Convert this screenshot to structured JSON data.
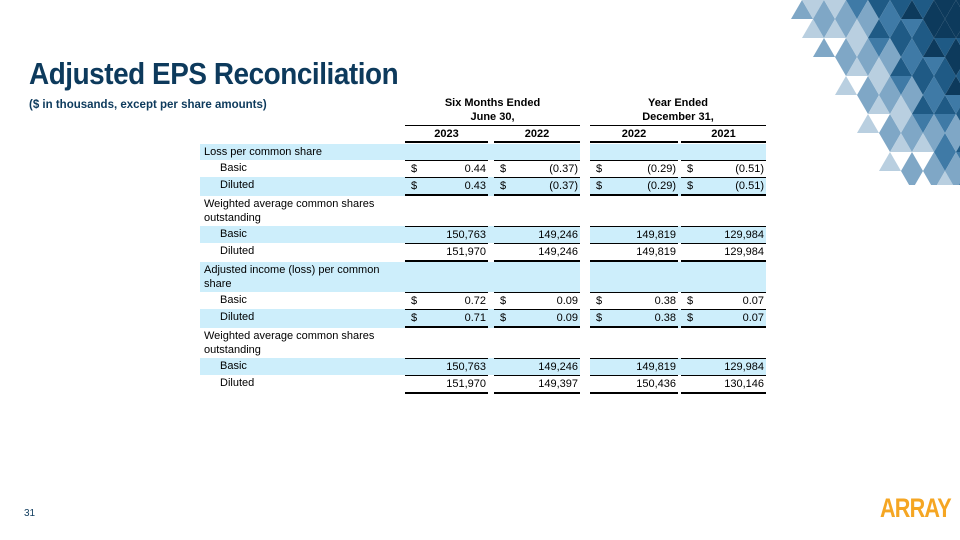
{
  "title": "Adjusted EPS Reconciliation",
  "subtitle": "($ in thousands, except per share amounts)",
  "table": {
    "group_headers": [
      {
        "line1": "Six Months Ended",
        "line2": "June 30,"
      },
      {
        "line1": "Year Ended",
        "line2": "December 31,"
      }
    ],
    "columns": [
      "2023",
      "2022",
      "2022",
      "2021"
    ],
    "rows": [
      {
        "label": "Loss per common share"
      },
      {
        "label": "Basic",
        "cells": [
          {
            "symbol": "$",
            "amount": "0.44"
          },
          {
            "symbol": "$",
            "amount": "(0.37)"
          },
          {
            "symbol": "$",
            "amount": "(0.29)"
          },
          {
            "symbol": "$",
            "amount": "(0.51)"
          }
        ]
      },
      {
        "label": "Diluted",
        "cells": [
          {
            "symbol": "$",
            "amount": "0.43"
          },
          {
            "symbol": "$",
            "amount": "(0.37)"
          },
          {
            "symbol": "$",
            "amount": "(0.29)"
          },
          {
            "symbol": "$",
            "amount": "(0.51)"
          }
        ]
      },
      {
        "label": "Weighted average common shares outstanding"
      },
      {
        "label": "Basic",
        "cells": [
          "150,763",
          "149,246",
          "149,819",
          "129,984"
        ]
      },
      {
        "label": "Diluted",
        "cells": [
          "151,970",
          "149,246",
          "149,819",
          "129,984"
        ]
      },
      {
        "label": "Adjusted income (loss) per common share"
      },
      {
        "label": "Basic",
        "cells": [
          {
            "symbol": "$",
            "amount": "0.72"
          },
          {
            "symbol": "$",
            "amount": "0.09"
          },
          {
            "symbol": "$",
            "amount": "0.38"
          },
          {
            "symbol": "$",
            "amount": "0.07"
          }
        ]
      },
      {
        "label": "Diluted",
        "cells": [
          {
            "symbol": "$",
            "amount": "0.71"
          },
          {
            "symbol": "$",
            "amount": "0.09"
          },
          {
            "symbol": "$",
            "amount": "0.38"
          },
          {
            "symbol": "$",
            "amount": "0.07"
          }
        ]
      },
      {
        "label": "Weighted average common shares outstanding"
      },
      {
        "label": "Basic",
        "cells": [
          "150,763",
          "149,246",
          "149,819",
          "129,984"
        ]
      },
      {
        "label": "Diluted",
        "cells": [
          "151,970",
          "149,397",
          "150,436",
          "130,146"
        ]
      }
    ]
  },
  "page_number": "31",
  "logo": "ARRAY"
}
